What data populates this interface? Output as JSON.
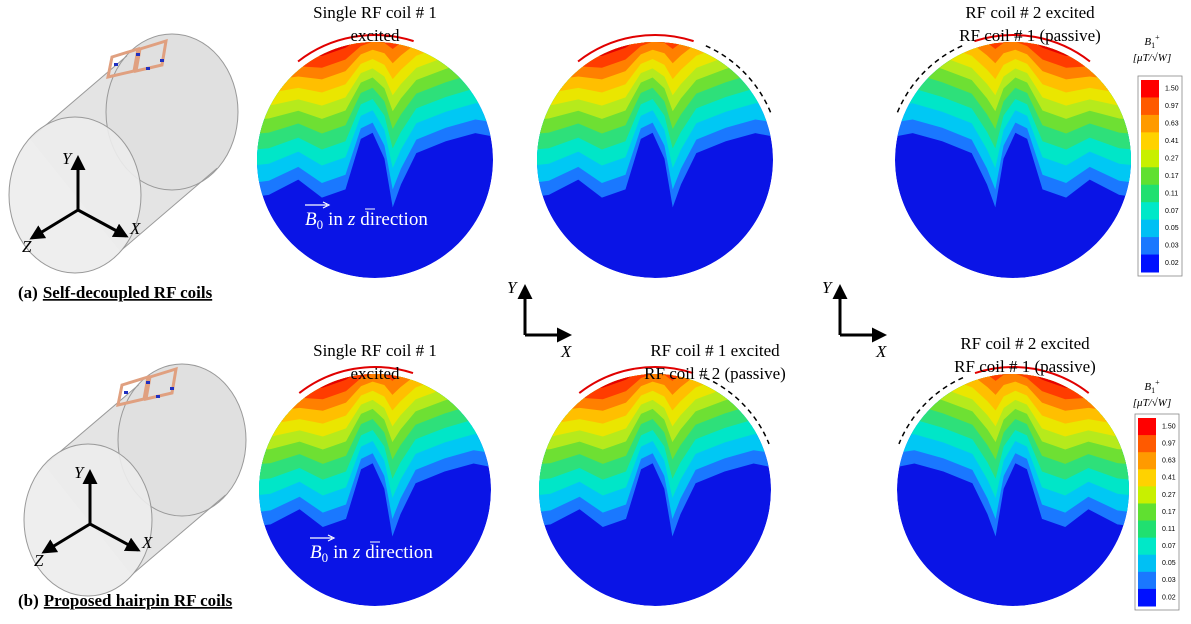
{
  "panels": [
    {
      "label_prefix": "(a)",
      "label": "Self-decoupled RF coils",
      "axis_labels": {
        "y": "Y",
        "x": "X",
        "z": "Z"
      },
      "maps": [
        {
          "title_lines": [
            "Single RF coil # 1",
            "excited"
          ],
          "b0_label": {
            "b": "B",
            "sub": "0",
            "mid": "in",
            "z": "z",
            "end": "direction"
          }
        },
        {},
        {
          "title_lines": [
            "RF coil # 2 excited",
            "RF coil # 1 (passive)"
          ]
        }
      ],
      "colorbar": {
        "title_main": "B",
        "title_sub": "1",
        "title_sup": "+",
        "unit": "[μT/√W]",
        "levels": [
          "1.50",
          "0.97",
          "0.63",
          "0.41",
          "0.27",
          "0.17",
          "0.11",
          "0.07",
          "0.05",
          "0.03",
          "0.02"
        ]
      }
    },
    {
      "label_prefix": "(b)",
      "label": "Proposed hairpin RF coils",
      "axis_labels": {
        "y": "Y",
        "x": "X",
        "z": "Z"
      },
      "maps": [
        {
          "title_lines": [
            "Single RF coil # 1",
            "excited"
          ],
          "b0_label": {
            "b": "B",
            "sub": "0",
            "mid": "in",
            "z": "z",
            "end": "direction"
          }
        },
        {
          "title_lines": [
            "RF coil # 1 excited",
            "RF coil # 2 (passive)"
          ]
        },
        {
          "title_lines": [
            "RF coil # 2 excited",
            "RF coil # 1 (passive)"
          ]
        }
      ],
      "colorbar": {
        "title_main": "B",
        "title_sub": "1",
        "title_sup": "+",
        "unit": "[μT/√W]",
        "levels": [
          "1.50",
          "0.97",
          "0.63",
          "0.41",
          "0.27",
          "0.17",
          "0.11",
          "0.07",
          "0.05",
          "0.03",
          "0.02"
        ]
      }
    }
  ],
  "axes_indicators": [
    {
      "y": "Y",
      "x": "X"
    },
    {
      "y": "Y",
      "x": "X"
    }
  ]
}
